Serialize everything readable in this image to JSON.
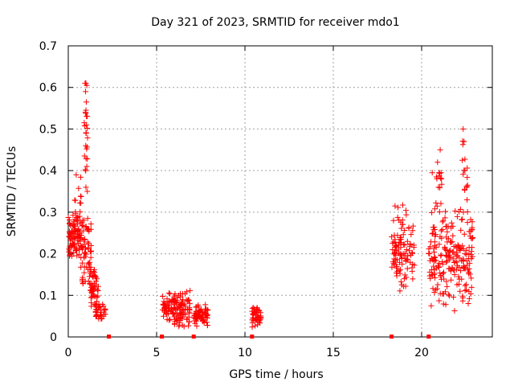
{
  "chart_data": {
    "type": "scatter",
    "title": "Day 321 of 2023, SRMTID for receiver mdo1",
    "xlabel": "GPS time / hours",
    "ylabel": "SRMTID / TECUs",
    "xlim": [
      0,
      24
    ],
    "ylim": [
      0,
      0.7
    ],
    "xticks": [
      0,
      5,
      10,
      15,
      20
    ],
    "yticks": [
      0,
      0.1,
      0.2,
      0.3,
      0.4,
      0.5,
      0.6,
      0.7
    ],
    "xtick_labels": [
      "0",
      "5",
      "10",
      "15",
      "20"
    ],
    "ytick_labels": [
      "0",
      "0.1",
      "0.2",
      "0.3",
      "0.4",
      "0.5",
      "0.6",
      "0.7"
    ],
    "grid": true,
    "marker": "+",
    "marker_color": "#ff0000",
    "series": [
      {
        "name": "SRMTID",
        "clusters": [
          {
            "x_range": [
              0.0,
              0.7
            ],
            "y_range": [
              0.17,
              0.3
            ],
            "count": 90
          },
          {
            "x_range": [
              0.3,
              0.8
            ],
            "y_range": [
              0.2,
              0.39
            ],
            "count": 18
          },
          {
            "x_range": [
              0.7,
              1.3
            ],
            "y_range": [
              0.09,
              0.3
            ],
            "count": 60
          },
          {
            "x_range": [
              0.9,
              1.1
            ],
            "y_range": [
              0.35,
              0.61
            ],
            "count": 16
          },
          {
            "x_range": [
              1.2,
              1.7
            ],
            "y_range": [
              0.07,
              0.18
            ],
            "count": 50
          },
          {
            "x_range": [
              1.5,
              2.1
            ],
            "y_range": [
              0.04,
              0.09
            ],
            "count": 35
          },
          {
            "x_range": [
              5.3,
              6.9
            ],
            "y_range": [
              0.02,
              0.12
            ],
            "count": 140
          },
          {
            "x_range": [
              7.1,
              7.9
            ],
            "y_range": [
              0.02,
              0.08
            ],
            "count": 70
          },
          {
            "x_range": [
              10.4,
              10.9
            ],
            "y_range": [
              0.02,
              0.08
            ],
            "count": 40
          },
          {
            "x_range": [
              18.3,
              19.6
            ],
            "y_range": [
              0.1,
              0.32
            ],
            "count": 110
          },
          {
            "x_range": [
              20.4,
              22.9
            ],
            "y_range": [
              0.06,
              0.33
            ],
            "count": 220
          },
          {
            "x_range": [
              20.8,
              21.2
            ],
            "y_range": [
              0.3,
              0.45
            ],
            "count": 12
          },
          {
            "x_range": [
              22.3,
              22.6
            ],
            "y_range": [
              0.3,
              0.5
            ],
            "count": 12
          }
        ],
        "points": [
          [
            0.95,
            0.61
          ],
          [
            1.0,
            0.61
          ],
          [
            1.05,
            0.605
          ],
          [
            0.98,
            0.59
          ],
          [
            1.02,
            0.565
          ],
          [
            1.0,
            0.545
          ],
          [
            0.97,
            0.54
          ],
          [
            1.03,
            0.51
          ],
          [
            1.01,
            0.49
          ],
          [
            0.99,
            0.46
          ],
          [
            1.05,
            0.41
          ],
          [
            1.0,
            0.36
          ],
          [
            1.08,
            0.35
          ],
          [
            0.45,
            0.39
          ],
          [
            1.1,
            0.285
          ],
          [
            21.05,
            0.45
          ],
          [
            20.9,
            0.42
          ],
          [
            21.1,
            0.395
          ],
          [
            20.6,
            0.395
          ],
          [
            20.95,
            0.36
          ],
          [
            22.35,
            0.5
          ],
          [
            22.4,
            0.47
          ],
          [
            22.3,
            0.425
          ],
          [
            22.45,
            0.4
          ],
          [
            22.6,
            0.365
          ]
        ],
        "baseline_points": [
          [
            2.3,
            0.0
          ],
          [
            5.3,
            0.0
          ],
          [
            7.1,
            0.0
          ],
          [
            10.4,
            0.0
          ],
          [
            18.3,
            0.0
          ],
          [
            20.4,
            0.0
          ]
        ]
      }
    ]
  }
}
